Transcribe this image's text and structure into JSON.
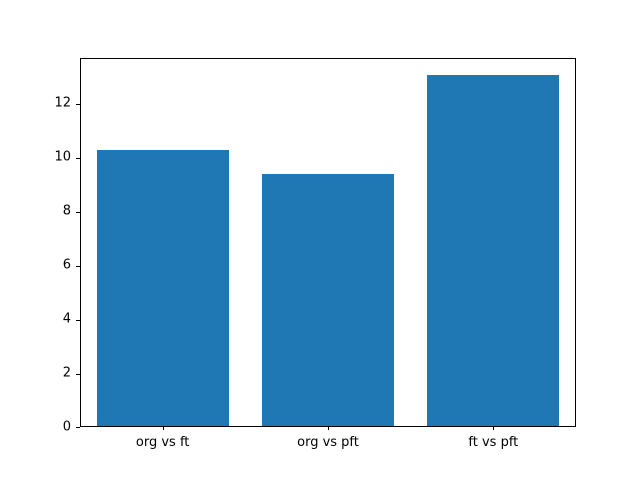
{
  "chart_data": {
    "type": "bar",
    "title": "",
    "xlabel": "",
    "ylabel": "",
    "categories": [
      "org vs ft",
      "org vs pft",
      "ft vs pft"
    ],
    "values": [
      10.2,
      9.33,
      13.0
    ],
    "yticks": [
      0,
      2,
      4,
      6,
      8,
      10,
      12
    ],
    "ylim": [
      0,
      13.65
    ],
    "bar_color": "#1f77b4",
    "bar_width_fraction": 0.8,
    "axis_color": "#000000",
    "background_color": "#ffffff",
    "grid": false,
    "legend": false
  }
}
